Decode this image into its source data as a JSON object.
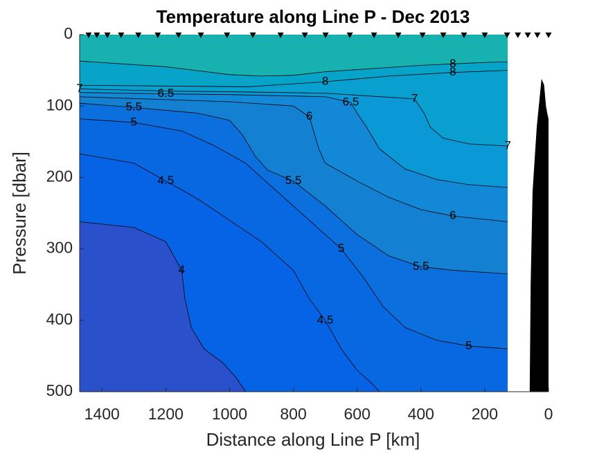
{
  "chart_data": {
    "type": "contour",
    "title": "Temperature along Line P - Dec 2013",
    "xlabel": "Distance along Line P [km]",
    "ylabel": "Pressure [dbar]",
    "xlim": [
      1470,
      0
    ],
    "ylim": [
      0,
      500
    ],
    "xticks": [
      1400,
      1200,
      1000,
      800,
      600,
      400,
      200,
      0
    ],
    "yticks": [
      0,
      100,
      200,
      300,
      400,
      500
    ],
    "x_reversed": true,
    "y_reversed": true,
    "top_color": "#17b2b0",
    "contours": [
      {
        "level": 8,
        "color": "#08a3c8",
        "x": [
          1470,
          1200,
          1000,
          900,
          800,
          700,
          600,
          500,
          400,
          300,
          200,
          128
        ],
        "y": [
          37,
          45,
          56,
          58,
          57,
          52,
          49,
          46,
          43,
          41,
          39,
          38
        ]
      },
      {
        "level": 8,
        "color": "#09a0d0",
        "x": [
          1470,
          1200,
          940,
          700,
          500,
          300,
          128
        ],
        "y": [
          71,
          72,
          73,
          66,
          58,
          53,
          50
        ]
      },
      {
        "level": 7,
        "color": "#0a98d6",
        "x": [
          1470,
          1200,
          1000,
          700,
          420,
          390,
          370,
          330,
          250,
          128
        ],
        "y": [
          76,
          79,
          80,
          82,
          90,
          110,
          130,
          145,
          153,
          156
        ]
      },
      {
        "level": 6.5,
        "color": "#1288d6",
        "x": [
          1470,
          1200,
          1000,
          700,
          620,
          600,
          570,
          530,
          450,
          350,
          250,
          128
        ],
        "y": [
          81,
          83,
          84,
          87,
          95,
          110,
          130,
          160,
          188,
          203,
          210,
          214
        ]
      },
      {
        "level": 6,
        "color": "#1480d2",
        "x": [
          1470,
          1200,
          1000,
          800,
          750,
          740,
          720,
          700,
          600,
          500,
          400,
          300,
          128
        ],
        "y": [
          87,
          91,
          94,
          100,
          115,
          130,
          160,
          180,
          205,
          228,
          245,
          254,
          262
        ]
      },
      {
        "level": 5.5,
        "color": "#0b70de",
        "x": [
          1470,
          1300,
          1100,
          1000,
          960,
          920,
          880,
          800,
          700,
          600,
          500,
          400,
          300,
          128
        ],
        "y": [
          96,
          102,
          110,
          120,
          140,
          170,
          190,
          205,
          240,
          280,
          310,
          325,
          330,
          335
        ]
      },
      {
        "level": 5,
        "color": "#0868e2",
        "x": [
          1470,
          1300,
          1150,
          1050,
          950,
          850,
          750,
          650,
          580,
          520,
          450,
          350,
          250,
          128
        ],
        "y": [
          118,
          123,
          135,
          155,
          180,
          220,
          260,
          300,
          340,
          380,
          410,
          428,
          436,
          440
        ]
      },
      {
        "level": 4.5,
        "color": "#0663e6",
        "x": [
          1470,
          1300,
          1200,
          1100,
          1000,
          900,
          800,
          750,
          700,
          650,
          600,
          550,
          530
        ],
        "y": [
          167,
          180,
          205,
          230,
          260,
          290,
          330,
          370,
          400,
          440,
          470,
          490,
          500
        ]
      },
      {
        "level": 4,
        "color": "#2a50cc",
        "x": [
          1470,
          1300,
          1200,
          1150,
          1140,
          1120,
          1080,
          1020,
          980,
          950
        ],
        "y": [
          262,
          270,
          290,
          330,
          370,
          410,
          440,
          460,
          480,
          500
        ]
      }
    ],
    "stations": [
      1442,
      1416,
      1383,
      1340,
      1286,
      1225,
      1160,
      1090,
      1008,
      927,
      840,
      764,
      699,
      623,
      547,
      471,
      395,
      330,
      265,
      200,
      130,
      96,
      65,
      35,
      0
    ],
    "bathymetry": {
      "x": [
        59,
        56,
        50,
        37,
        22,
        14,
        8,
        4,
        0,
        0
      ],
      "y": [
        500,
        350,
        220,
        130,
        62,
        70,
        100,
        110,
        118,
        500
      ]
    }
  }
}
